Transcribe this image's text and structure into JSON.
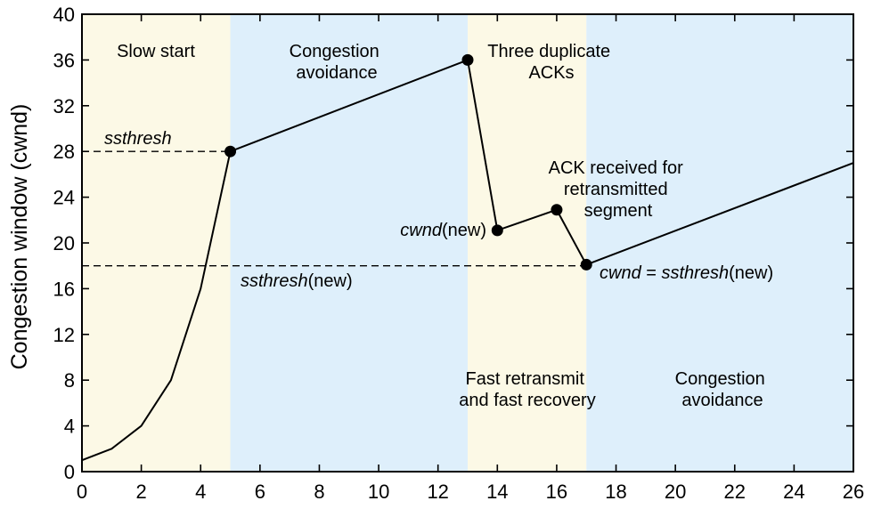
{
  "chart_data": {
    "type": "line",
    "title": "",
    "xlabel": "",
    "ylabel": "Congestion window (cwnd)",
    "xlim": [
      0,
      26
    ],
    "ylim": [
      0,
      40
    ],
    "xticks": [
      "0",
      "2",
      "4",
      "6",
      "8",
      "10",
      "12",
      "14",
      "16",
      "18",
      "20",
      "22",
      "24",
      "26"
    ],
    "yticks": [
      "0",
      "4",
      "8",
      "12",
      "16",
      "20",
      "24",
      "28",
      "32",
      "36",
      "40"
    ],
    "grid": false,
    "series": [
      {
        "x": [
          0,
          1,
          2,
          3,
          4,
          5,
          13,
          14,
          16,
          17,
          26
        ],
        "y": [
          1,
          2,
          4,
          8,
          16,
          28,
          36,
          21.1,
          22.9,
          18.1,
          27
        ]
      }
    ],
    "markers": [
      {
        "x": 5,
        "y": 28
      },
      {
        "x": 13,
        "y": 36
      },
      {
        "x": 14,
        "y": 21.1
      },
      {
        "x": 16,
        "y": 22.9
      },
      {
        "x": 17,
        "y": 18.1
      }
    ],
    "regions": [
      {
        "x0": 0,
        "x1": 5,
        "color": "#fcf9e6"
      },
      {
        "x0": 5,
        "x1": 13,
        "color": "#deeffb"
      },
      {
        "x0": 13,
        "x1": 17,
        "color": "#fcf9e6"
      },
      {
        "x0": 17,
        "x1": 26,
        "color": "#deeffb"
      }
    ],
    "reference_lines": [
      {
        "y": 28,
        "x0": 0,
        "x1": 5
      },
      {
        "y": 18,
        "x0": 0,
        "x1": 17
      }
    ],
    "annotations": {
      "slow_start": "Slow start",
      "congestion_avoidance_1": [
        "Congestion",
        "avoidance"
      ],
      "three_dup_acks": [
        "Three duplicate",
        "ACKs"
      ],
      "ssthresh": "ssthresh",
      "ack_received": [
        "ACK received for",
        "retransmitted",
        "segment"
      ],
      "cwnd_new_italic": "cwnd",
      "cwnd_new_suffix": "(new)",
      "ssthresh_new_italic": "ssthresh",
      "ssthresh_new_suffix": "(new)",
      "cwnd_eq_italic1": "cwnd",
      "cwnd_eq_mid": " = ",
      "cwnd_eq_italic2": "ssthresh",
      "cwnd_eq_suffix": "(new)",
      "fast_retransmit": [
        "Fast retransmit",
        "and fast recovery"
      ],
      "congestion_avoidance_2": [
        "Congestion",
        "avoidance"
      ]
    }
  }
}
